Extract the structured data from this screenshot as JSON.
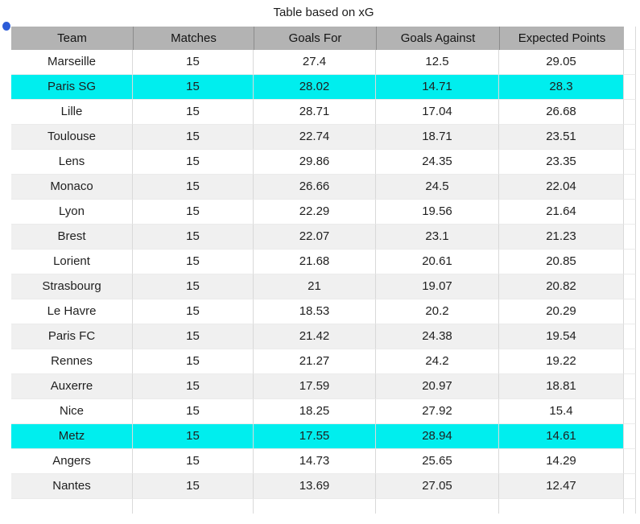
{
  "title": "Table based on xG",
  "colors": {
    "header_bg": "#b3b3b3",
    "zebra_row": "#f0f0f0",
    "highlight_row": "#00eeee",
    "gridline": "#d9d9d9",
    "blue_marker": "#2c5cd8"
  },
  "marker": {
    "name": "blue-dot-marker"
  },
  "table": {
    "headers": [
      "Team",
      "Matches",
      "Goals For",
      "Goals Against",
      "Expected Points"
    ],
    "rows": [
      {
        "team": "Marseille",
        "matches": "15",
        "goals_for": "27.4",
        "goals_against": "12.5",
        "expected_points": "29.05",
        "highlighted": false
      },
      {
        "team": "Paris SG",
        "matches": "15",
        "goals_for": "28.02",
        "goals_against": "14.71",
        "expected_points": "28.3",
        "highlighted": true
      },
      {
        "team": "Lille",
        "matches": "15",
        "goals_for": "28.71",
        "goals_against": "17.04",
        "expected_points": "26.68",
        "highlighted": false
      },
      {
        "team": "Toulouse",
        "matches": "15",
        "goals_for": "22.74",
        "goals_against": "18.71",
        "expected_points": "23.51",
        "highlighted": false
      },
      {
        "team": "Lens",
        "matches": "15",
        "goals_for": "29.86",
        "goals_against": "24.35",
        "expected_points": "23.35",
        "highlighted": false
      },
      {
        "team": "Monaco",
        "matches": "15",
        "goals_for": "26.66",
        "goals_against": "24.5",
        "expected_points": "22.04",
        "highlighted": false
      },
      {
        "team": "Lyon",
        "matches": "15",
        "goals_for": "22.29",
        "goals_against": "19.56",
        "expected_points": "21.64",
        "highlighted": false
      },
      {
        "team": "Brest",
        "matches": "15",
        "goals_for": "22.07",
        "goals_against": "23.1",
        "expected_points": "21.23",
        "highlighted": false
      },
      {
        "team": "Lorient",
        "matches": "15",
        "goals_for": "21.68",
        "goals_against": "20.61",
        "expected_points": "20.85",
        "highlighted": false
      },
      {
        "team": "Strasbourg",
        "matches": "15",
        "goals_for": "21",
        "goals_against": "19.07",
        "expected_points": "20.82",
        "highlighted": false
      },
      {
        "team": "Le Havre",
        "matches": "15",
        "goals_for": "18.53",
        "goals_against": "20.2",
        "expected_points": "20.29",
        "highlighted": false
      },
      {
        "team": "Paris FC",
        "matches": "15",
        "goals_for": "21.42",
        "goals_against": "24.38",
        "expected_points": "19.54",
        "highlighted": false
      },
      {
        "team": "Rennes",
        "matches": "15",
        "goals_for": "21.27",
        "goals_against": "24.2",
        "expected_points": "19.22",
        "highlighted": false
      },
      {
        "team": "Auxerre",
        "matches": "15",
        "goals_for": "17.59",
        "goals_against": "20.97",
        "expected_points": "18.81",
        "highlighted": false
      },
      {
        "team": "Nice",
        "matches": "15",
        "goals_for": "18.25",
        "goals_against": "27.92",
        "expected_points": "15.4",
        "highlighted": false
      },
      {
        "team": "Metz",
        "matches": "15",
        "goals_for": "17.55",
        "goals_against": "28.94",
        "expected_points": "14.61",
        "highlighted": true
      },
      {
        "team": "Angers",
        "matches": "15",
        "goals_for": "14.73",
        "goals_against": "25.65",
        "expected_points": "14.29",
        "highlighted": false
      },
      {
        "team": "Nantes",
        "matches": "15",
        "goals_for": "13.69",
        "goals_against": "27.05",
        "expected_points": "12.47",
        "highlighted": false
      }
    ]
  }
}
